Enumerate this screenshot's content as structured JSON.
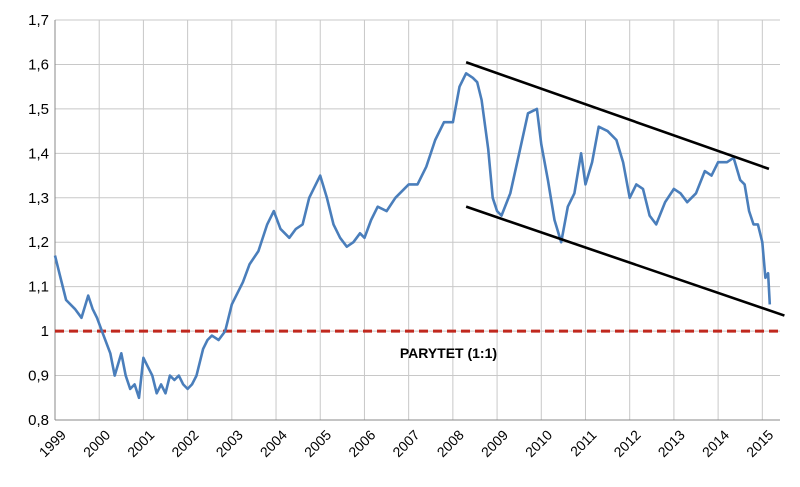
{
  "chart_data": {
    "type": "line",
    "title": "",
    "xlabel": "",
    "ylabel": "",
    "xlim": [
      1999,
      2015.4
    ],
    "ylim": [
      0.8,
      1.7
    ],
    "grid": true,
    "y_ticks": [
      "0,8",
      "0,9",
      "1",
      "1,1",
      "1,2",
      "1,3",
      "1,4",
      "1,5",
      "1,6",
      "1,7"
    ],
    "x_ticks": [
      "1999",
      "2000",
      "2001",
      "2002",
      "2003",
      "2004",
      "2005",
      "2006",
      "2007",
      "2008",
      "2009",
      "2010",
      "2011",
      "2012",
      "2013",
      "2014",
      "2015"
    ],
    "series": [
      {
        "color": "#4a7ebb",
        "x": [
          1999.0,
          1999.1,
          1999.25,
          1999.45,
          1999.6,
          1999.75,
          1999.85,
          1999.95,
          2000.1,
          2000.25,
          2000.35,
          2000.5,
          2000.6,
          2000.7,
          2000.8,
          2000.9,
          2001.0,
          2001.1,
          2001.2,
          2001.3,
          2001.4,
          2001.5,
          2001.6,
          2001.7,
          2001.8,
          2001.9,
          2002.0,
          2002.1,
          2002.2,
          2002.35,
          2002.45,
          2002.55,
          2002.7,
          2002.85,
          2003.0,
          2003.1,
          2003.25,
          2003.4,
          2003.6,
          2003.8,
          2003.95,
          2004.1,
          2004.3,
          2004.45,
          2004.6,
          2004.75,
          2004.9,
          2005.0,
          2005.15,
          2005.3,
          2005.45,
          2005.6,
          2005.75,
          2005.9,
          2006.0,
          2006.15,
          2006.3,
          2006.5,
          2006.7,
          2006.9,
          2007.0,
          2007.2,
          2007.4,
          2007.6,
          2007.8,
          2008.0,
          2008.15,
          2008.3,
          2008.45,
          2008.55,
          2008.65,
          2008.8,
          2008.9,
          2009.0,
          2009.1,
          2009.3,
          2009.5,
          2009.7,
          2009.9,
          2010.0,
          2010.15,
          2010.3,
          2010.45,
          2010.6,
          2010.75,
          2010.9,
          2011.0,
          2011.15,
          2011.3,
          2011.5,
          2011.7,
          2011.85,
          2012.0,
          2012.15,
          2012.3,
          2012.45,
          2012.6,
          2012.8,
          2013.0,
          2013.15,
          2013.3,
          2013.5,
          2013.7,
          2013.85,
          2014.0,
          2014.2,
          2014.35,
          2014.5,
          2014.6,
          2014.7,
          2014.8,
          2014.9,
          2015.0,
          2015.07,
          2015.13,
          2015.17
        ],
        "y": [
          1.17,
          1.13,
          1.07,
          1.05,
          1.03,
          1.08,
          1.05,
          1.03,
          0.99,
          0.95,
          0.9,
          0.95,
          0.9,
          0.87,
          0.88,
          0.85,
          0.94,
          0.92,
          0.9,
          0.86,
          0.88,
          0.86,
          0.9,
          0.89,
          0.9,
          0.88,
          0.87,
          0.88,
          0.9,
          0.96,
          0.98,
          0.99,
          0.98,
          1.0,
          1.06,
          1.08,
          1.11,
          1.15,
          1.18,
          1.24,
          1.27,
          1.23,
          1.21,
          1.23,
          1.24,
          1.3,
          1.33,
          1.35,
          1.3,
          1.24,
          1.21,
          1.19,
          1.2,
          1.22,
          1.21,
          1.25,
          1.28,
          1.27,
          1.3,
          1.32,
          1.33,
          1.33,
          1.37,
          1.43,
          1.47,
          1.47,
          1.55,
          1.58,
          1.57,
          1.56,
          1.52,
          1.41,
          1.3,
          1.27,
          1.26,
          1.31,
          1.4,
          1.49,
          1.5,
          1.42,
          1.34,
          1.25,
          1.2,
          1.28,
          1.31,
          1.4,
          1.33,
          1.38,
          1.46,
          1.45,
          1.43,
          1.38,
          1.3,
          1.33,
          1.32,
          1.26,
          1.24,
          1.29,
          1.32,
          1.31,
          1.29,
          1.31,
          1.36,
          1.35,
          1.38,
          1.38,
          1.39,
          1.34,
          1.33,
          1.27,
          1.24,
          1.24,
          1.2,
          1.12,
          1.13,
          1.06
        ]
      }
    ],
    "reference_line": {
      "y": 1.0,
      "color": "#c0281e",
      "style": "dashed",
      "label": "PARYTET (1:1)",
      "label_x": 2006.8,
      "label_y": 0.94
    },
    "trend_lines": [
      {
        "x": [
          2008.3,
          2015.15
        ],
        "y": [
          1.605,
          1.365
        ]
      },
      {
        "x": [
          2008.3,
          2015.5
        ],
        "y": [
          1.28,
          1.035
        ]
      }
    ]
  }
}
